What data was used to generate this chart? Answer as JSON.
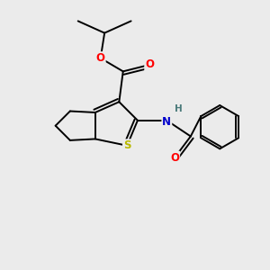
{
  "background_color": "#ebebeb",
  "bond_color": "#000000",
  "atom_colors": {
    "S": "#b8b800",
    "O": "#ff0000",
    "N": "#0000cc",
    "H": "#4a7a7a",
    "C": "#000000"
  },
  "figsize": [
    3.0,
    3.0
  ],
  "dpi": 100
}
